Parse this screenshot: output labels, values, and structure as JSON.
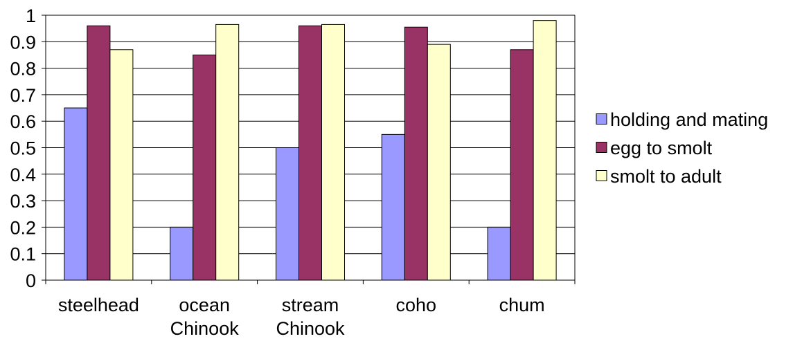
{
  "chart_data": {
    "type": "bar",
    "categories": [
      [
        "steelhead"
      ],
      [
        "ocean",
        "Chinook"
      ],
      [
        "stream",
        "Chinook"
      ],
      [
        "coho"
      ],
      [
        "chum"
      ]
    ],
    "series": [
      {
        "name": "holding and mating",
        "color": "#9999ff",
        "values": [
          0.65,
          0.2,
          0.5,
          0.55,
          0.2
        ]
      },
      {
        "name": "egg to smolt",
        "color": "#993366",
        "values": [
          0.96,
          0.85,
          0.96,
          0.955,
          0.87
        ]
      },
      {
        "name": "smolt to adult",
        "color": "#ffffcc",
        "values": [
          0.87,
          0.965,
          0.965,
          0.89,
          0.98
        ]
      }
    ],
    "y_ticks": [
      "0",
      "0.1",
      "0.2",
      "0.3",
      "0.4",
      "0.5",
      "0.6",
      "0.7",
      "0.8",
      "0.9",
      "1"
    ],
    "ylim": [
      0,
      1
    ],
    "title": "",
    "xlabel": "",
    "ylabel": "",
    "grid": true,
    "legend": "right"
  }
}
